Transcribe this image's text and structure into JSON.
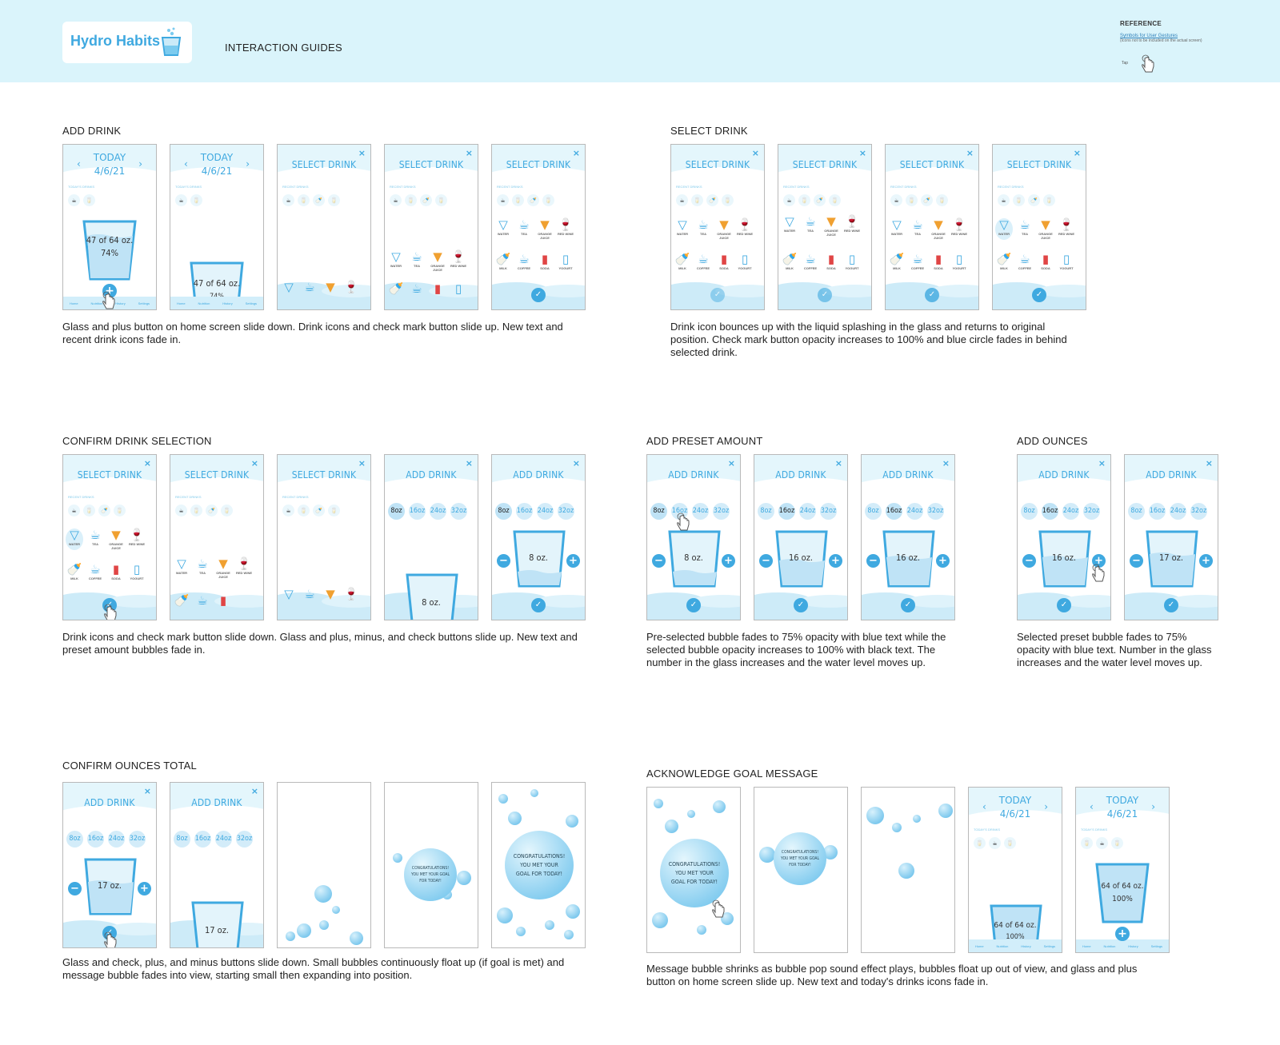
{
  "header": {
    "app_name": "Hydro Habits",
    "title": "INTERACTION GUIDES",
    "reference_title": "REFERENCE",
    "reference_link": "Symbols for User Gestures",
    "reference_note": "(Icons not to be included on the actual screen)",
    "tap_label": "Tap"
  },
  "colors": {
    "accent": "#3fa9e0",
    "banner": "#daf4fb",
    "water": "#bfe3f6"
  },
  "strings": {
    "select_drink": "SELECT DRINK",
    "add_drink": "ADD DRINK",
    "today": "TODAY",
    "date": "4/6/21",
    "recent_drinks": "RECENT DRINKS",
    "todays_drinks": "TODAY'S DRINKS",
    "close": "×",
    "check": "✓",
    "plus": "+",
    "minus": "−",
    "left": "‹",
    "right": "›",
    "glass_47": "47 of 64 oz.",
    "pct_74": "74%",
    "glass_64": "64 of 64 oz.",
    "pct_100": "100%",
    "oz8": "8 oz.",
    "oz16": "16 oz.",
    "oz17": "17 oz.",
    "congrats": "CONGRATULATIONS! YOU MET YOUR GOAL FOR TODAY!",
    "preset_8": "8oz",
    "preset_16": "16oz",
    "preset_24": "24oz",
    "preset_32": "32oz"
  },
  "drinks": [
    {
      "label": "WATER",
      "icon": "water-glass-icon"
    },
    {
      "label": "TEA",
      "icon": "tea-cup-icon"
    },
    {
      "label": "ORANGE JUICE",
      "icon": "juice-glass-icon"
    },
    {
      "label": "RED WINE",
      "icon": "wine-glass-icon"
    },
    {
      "label": "MILK",
      "icon": "milk-bottle-icon"
    },
    {
      "label": "COFFEE",
      "icon": "coffee-cup-icon"
    },
    {
      "label": "SODA",
      "icon": "soda-can-icon"
    },
    {
      "label": "YOGURT",
      "icon": "yogurt-icon"
    }
  ],
  "nav": [
    "Home",
    "Nutrition",
    "History",
    "Settings"
  ],
  "sections": {
    "add_drink": {
      "title": "ADD DRINK",
      "desc": "Glass and plus button on home screen slide down. Drink icons and check mark button slide up. New text and recent drink icons fade in."
    },
    "select_drink": {
      "title": "SELECT DRINK",
      "desc": "Drink icon bounces up with the liquid splashing in the glass and returns to original position. Check mark button opacity increases to 100% and blue circle fades in behind selected drink."
    },
    "confirm_drink": {
      "title": "CONFIRM DRINK SELECTION",
      "desc": "Drink icons and check mark button slide down. Glass and plus, minus, and check buttons slide up. New text and preset amount bubbles fade in."
    },
    "add_preset": {
      "title": "ADD PRESET AMOUNT",
      "desc": "Pre-selected bubble fades to 75% opacity with blue text while the selected bubble opacity increases to 100% with black text. The number in the glass increases and the water level moves up."
    },
    "add_ounces": {
      "title": "ADD OUNCES",
      "desc": "Selected preset bubble fades to 75% opacity with blue text. Number in the glass increases and the water level moves up."
    },
    "confirm_ounces": {
      "title": "CONFIRM OUNCES TOTAL",
      "desc": "Glass and check, plus, and minus buttons slide down. Small bubbles continuously float up (if goal is met) and message bubble fades into view, starting small then expanding into position."
    },
    "ack_goal": {
      "title": "ACKNOWLEDGE GOAL MESSAGE",
      "desc": "Message bubble shrinks as bubble pop sound effect plays, bubbles float up out of view, and glass and plus button on home screen slide up. New text and today's drinks icons fade in."
    }
  }
}
